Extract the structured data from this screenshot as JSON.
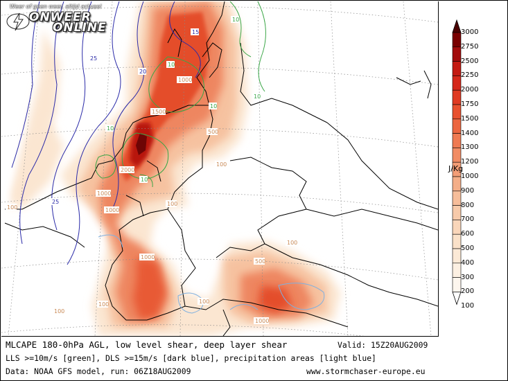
{
  "header": {
    "logo_tagline": "Weer of geen weer, altijd actueel",
    "logo_word1": "ONWEER",
    "logo_word2": "ONLINE"
  },
  "footer": {
    "title": "MLCAPE 180-0hPa AGL, low level shear, deep layer shear",
    "valid": "Valid: 15Z20AUG2009",
    "line2": "LLS >=10m/s [green], DLS >=15m/s [dark blue], precipitation areas [light blue]",
    "line3": "Data: NOAA GFS model, run: 06Z18AUG2009",
    "website": "www.stormchaser-europe.eu"
  },
  "legend": {
    "unit": "J/Kg",
    "levels": [
      "3000",
      "2750",
      "2500",
      "2250",
      "2000",
      "1750",
      "1500",
      "1400",
      "1300",
      "1200",
      "1000",
      "900",
      "800",
      "700",
      "600",
      "500",
      "400",
      "300",
      "200",
      "100"
    ],
    "colors": [
      "#4a0000",
      "#7a0000",
      "#a30c0c",
      "#c41a12",
      "#d5281a",
      "#e03a22",
      "#e8502e",
      "#ec6640",
      "#ef7a52",
      "#f18c64",
      "#f39d76",
      "#f4ae88",
      "#f6bd9a",
      "#f7caaa",
      "#f9d6ba",
      "#fae1c9",
      "#fbe9d6",
      "#fcf0e2",
      "#fdf6ee",
      "#ffffff"
    ]
  },
  "map_labels": {
    "cape": [
      "1500",
      "500",
      "100",
      "2000",
      "1000",
      "100",
      "100",
      "1000",
      "100",
      "500",
      "1000",
      "100",
      "100",
      "1000",
      "1000",
      "100"
    ],
    "lls": [
      "10",
      "10",
      "10",
      "10",
      "10",
      "10"
    ],
    "dls": [
      "15",
      "20",
      "25",
      "25"
    ]
  },
  "colors": {
    "lls_contour": "#3aa646",
    "dls_contour": "#2a2aa8",
    "precip_contour": "#7fb0e0",
    "cape_label": "#c98a56",
    "border": "#000000"
  }
}
